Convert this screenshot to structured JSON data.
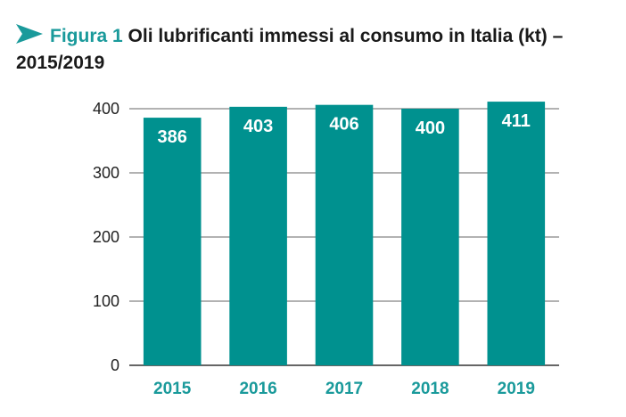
{
  "figure": {
    "label": "Figura 1",
    "title": "Oli lubrificanti immessi al consumo in Italia (kt) – 2015/2019"
  },
  "chart_data": {
    "type": "bar",
    "categories": [
      "2015",
      "2016",
      "2017",
      "2018",
      "2019"
    ],
    "values": [
      386,
      403,
      406,
      400,
      411
    ],
    "data_labels": [
      "386",
      "403",
      "406",
      "400",
      "411"
    ],
    "yticks": [
      0,
      100,
      200,
      300,
      400
    ],
    "ylim": [
      0,
      400
    ],
    "grid": true,
    "xlabel": "",
    "ylabel": "",
    "bar_color": "#00918f",
    "category_label_color": "#1a9a9b",
    "accent_color": "#1a9a9b"
  }
}
